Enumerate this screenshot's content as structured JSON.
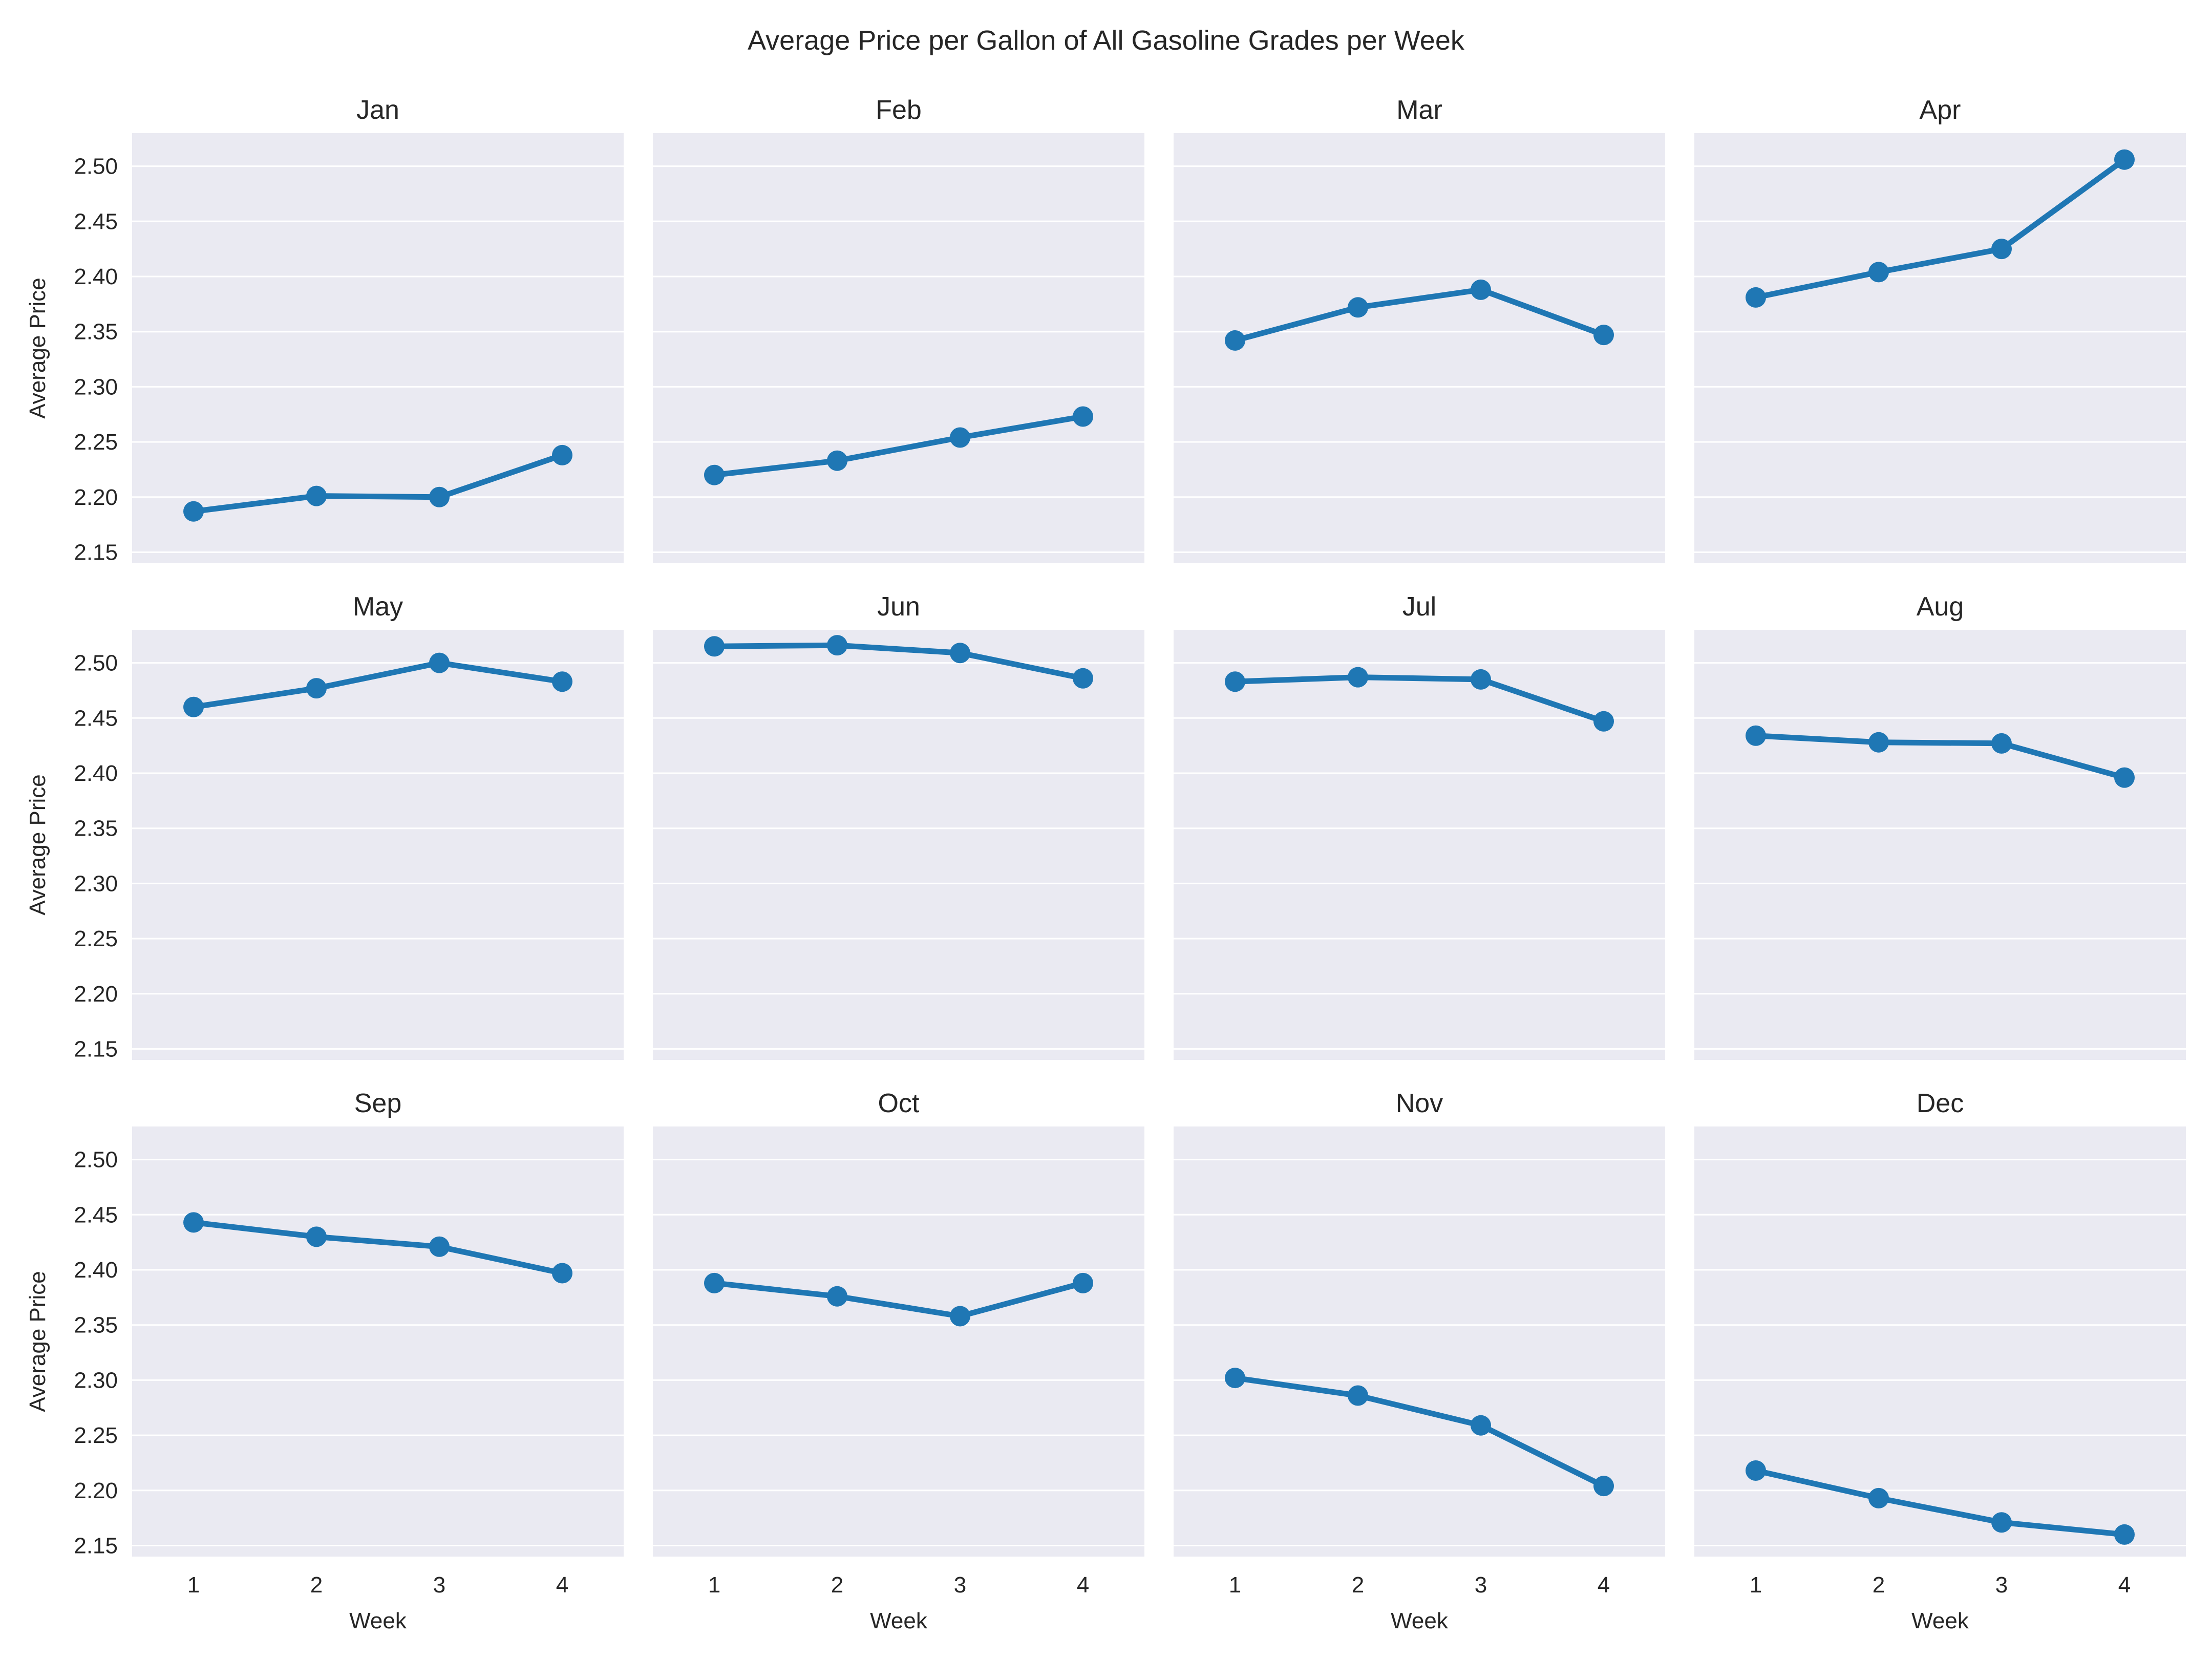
{
  "chart_data": {
    "type": "line",
    "title": "Average Price per Gallon of All Gasoline Grades per Week",
    "xlabel": "Week",
    "ylabel": "Average Price",
    "x": [
      1,
      2,
      3,
      4
    ],
    "x_ticks": [
      "1",
      "2",
      "3",
      "4"
    ],
    "ylim": [
      2.14,
      2.53
    ],
    "y_ticks": [
      "2.15",
      "2.20",
      "2.25",
      "2.30",
      "2.35",
      "2.40",
      "2.45",
      "2.50"
    ],
    "grid": true,
    "facets": [
      {
        "title": "Jan",
        "values": [
          2.187,
          2.201,
          2.2,
          2.238
        ]
      },
      {
        "title": "Feb",
        "values": [
          2.22,
          2.233,
          2.254,
          2.273
        ]
      },
      {
        "title": "Mar",
        "values": [
          2.342,
          2.372,
          2.388,
          2.347
        ]
      },
      {
        "title": "Apr",
        "values": [
          2.381,
          2.404,
          2.425,
          2.506
        ]
      },
      {
        "title": "May",
        "values": [
          2.46,
          2.477,
          2.5,
          2.483
        ]
      },
      {
        "title": "Jun",
        "values": [
          2.515,
          2.516,
          2.509,
          2.486
        ]
      },
      {
        "title": "Jul",
        "values": [
          2.483,
          2.487,
          2.485,
          2.447
        ]
      },
      {
        "title": "Aug",
        "values": [
          2.434,
          2.428,
          2.427,
          2.396
        ]
      },
      {
        "title": "Sep",
        "values": [
          2.443,
          2.43,
          2.421,
          2.397
        ]
      },
      {
        "title": "Oct",
        "values": [
          2.388,
          2.376,
          2.358,
          2.388
        ]
      },
      {
        "title": "Nov",
        "values": [
          2.302,
          2.286,
          2.259,
          2.204
        ]
      },
      {
        "title": "Dec",
        "values": [
          2.218,
          2.193,
          2.171,
          2.16
        ]
      }
    ],
    "colors": {
      "line": "#1f77b4",
      "panel_bg": "#eaeaf2",
      "grid": "#ffffff",
      "text": "#262626"
    }
  }
}
